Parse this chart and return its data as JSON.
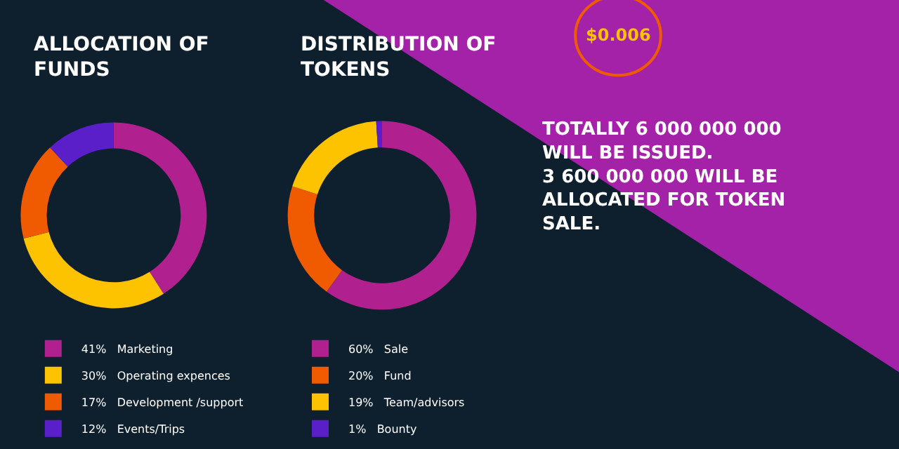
{
  "chart_data": [
    {
      "type": "donut",
      "title": "ALLOCATION OF FUNDS",
      "categories": [
        "Marketing",
        "Operating expences",
        "Development /support",
        "Events/Trips"
      ],
      "values": [
        41,
        30,
        17,
        12
      ],
      "value_labels": [
        "41%",
        "30%",
        "17%",
        "12%"
      ],
      "colors": [
        "#b0218f",
        "#fdc300",
        "#f05a00",
        "#5a1fc8"
      ],
      "legend": "bottom"
    },
    {
      "type": "donut",
      "title": "DISTRIBUTION OF TOKENS",
      "categories": [
        "Sale",
        "Fund",
        "Team/advisors",
        "Bounty"
      ],
      "values": [
        60,
        20,
        19,
        1
      ],
      "value_labels": [
        "60%",
        "20%",
        "19%",
        "1%"
      ],
      "colors": [
        "#b0218f",
        "#f05a00",
        "#fdc300",
        "#5a1fc8"
      ],
      "legend": "bottom"
    },
    {
      "type": "other",
      "annotations": [
        "$0.006",
        "TOTALLY 6 000 000 000 WILL BE ISSUED. 3 600 000 000 WILL BE ALLOCATED FOR TOKEN SALE."
      ]
    }
  ]
}
